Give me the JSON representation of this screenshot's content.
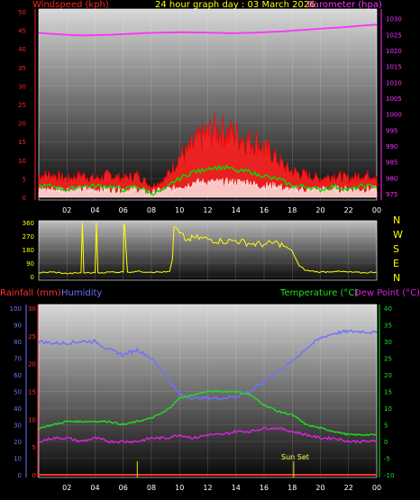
{
  "header": {
    "windspeed_title": "Windspeed (kph)",
    "graph_title": "24 hour graph day : 03 March 2026",
    "barometer_title": "Barometer (hpa)",
    "rainfall_title": "Rainfall (mm)",
    "humidity_title": "Humidity",
    "temperature_title": "Temperature (°C)",
    "dewpoint_title": "Dew Point (°C)",
    "sunset_label": "Sun Set"
  },
  "colors": {
    "windspeed": "#ff2020",
    "gust_outline": "#ff0000",
    "wind_avg": "#00e000",
    "wind_low": "#ffffff",
    "barometer": "#ff30ff",
    "direction": "#ffff00",
    "rainfall": "#ff3030",
    "humidity": "#7070ff",
    "temperature": "#20e020",
    "dewpoint": "#e020e0",
    "sun": "#d0c000"
  },
  "compass": [
    "N",
    "W",
    "S",
    "E",
    "N"
  ],
  "chart_data": [
    {
      "type": "line",
      "name": "wind-barometer",
      "x_ticks": [
        "02",
        "04",
        "06",
        "08",
        "10",
        "12",
        "14",
        "16",
        "18",
        "20",
        "22",
        "00"
      ],
      "left_axis": {
        "title": "Windspeed (kph)",
        "ylim": [
          0,
          50
        ],
        "ticks": [
          0,
          5,
          10,
          15,
          20,
          25,
          30,
          35,
          40,
          45,
          50
        ]
      },
      "right_axis": {
        "title": "Barometer (hpa)",
        "ylim": [
          973,
          1033
        ],
        "ticks": [
          975,
          980,
          985,
          990,
          995,
          1000,
          1005,
          1010,
          1015,
          1020,
          1025,
          1030
        ]
      },
      "hours": [
        0,
        1,
        2,
        3,
        4,
        5,
        6,
        7,
        8,
        9,
        9.5,
        10,
        10.5,
        11,
        11.5,
        12,
        12.5,
        13,
        13.5,
        14,
        14.5,
        15,
        15.5,
        16,
        16.5,
        17,
        17.5,
        18,
        19,
        20,
        21,
        22,
        23,
        24
      ],
      "gust": [
        6,
        6,
        5,
        6,
        5,
        6,
        5,
        6,
        3,
        5,
        8,
        11,
        12,
        14,
        16,
        17,
        18,
        18,
        17,
        17,
        16,
        15,
        15,
        13,
        12,
        10,
        8,
        7,
        6,
        5,
        6,
        5,
        6,
        6
      ],
      "avg": [
        3,
        3,
        2,
        3,
        3,
        3,
        2,
        3,
        1,
        2,
        4,
        5,
        6,
        7,
        7,
        8,
        8,
        8,
        8,
        7,
        7,
        7,
        6,
        6,
        5,
        5,
        4,
        3,
        3,
        2,
        3,
        2,
        3,
        3
      ],
      "low": [
        1,
        1,
        1,
        1,
        1,
        1,
        1,
        1,
        0,
        1,
        1,
        2,
        2,
        3,
        3,
        3,
        3,
        3,
        3,
        3,
        3,
        3,
        2,
        2,
        2,
        2,
        1,
        1,
        1,
        1,
        1,
        1,
        1,
        1
      ],
      "barometer": [
        1025.5,
        1025.2,
        1024.9,
        1024.7,
        1024.8,
        1024.9,
        1025.1,
        1025.3,
        1025.5,
        1025.6,
        1025.6,
        1025.7,
        1025.7,
        1025.6,
        1025.6,
        1025.6,
        1025.5,
        1025.5,
        1025.4,
        1025.4,
        1025.5,
        1025.5,
        1025.6,
        1025.7,
        1025.8,
        1025.9,
        1026,
        1026.2,
        1026.5,
        1026.8,
        1027.1,
        1027.4,
        1027.8,
        1028.1
      ]
    },
    {
      "type": "line",
      "name": "wind-direction",
      "left_axis": {
        "ylim": [
          0,
          360
        ],
        "ticks": [
          0,
          90,
          180,
          270,
          360
        ]
      },
      "hours": [
        0,
        1,
        2,
        3,
        3.1,
        3.2,
        4,
        4.1,
        4.2,
        5,
        6,
        6.05,
        6.1,
        6.3,
        7,
        8,
        9,
        9.3,
        9.5,
        9.6,
        10,
        10.5,
        11,
        12,
        13,
        14,
        15,
        16,
        17,
        17.5,
        18,
        18.5,
        19,
        20,
        21,
        22,
        23,
        24
      ],
      "direction": [
        25,
        30,
        20,
        25,
        360,
        25,
        25,
        360,
        25,
        30,
        30,
        350,
        340,
        30,
        35,
        30,
        30,
        35,
        120,
        330,
        290,
        240,
        260,
        250,
        235,
        240,
        220,
        215,
        225,
        200,
        170,
        70,
        40,
        30,
        35,
        30,
        25,
        30
      ]
    },
    {
      "type": "line",
      "name": "rain-humidity-temperature",
      "x_ticks": [
        "02",
        "04",
        "06",
        "08",
        "10",
        "12",
        "14",
        "16",
        "18",
        "20",
        "22",
        "00"
      ],
      "humidity_axis": {
        "title": "Humidity",
        "ylim": [
          0,
          100
        ],
        "ticks": [
          0,
          10,
          20,
          30,
          40,
          50,
          60,
          70,
          80,
          90,
          100
        ]
      },
      "rainfall_axis": {
        "title": "Rainfall (mm)",
        "ylim": [
          0,
          30
        ],
        "ticks": [
          0,
          5,
          10,
          15,
          20,
          25,
          30
        ]
      },
      "temperature_axis": {
        "title": "Temperature (°C)",
        "ylim": [
          -10,
          40
        ],
        "ticks": [
          -10,
          -5,
          0,
          5,
          10,
          15,
          20,
          25,
          30,
          35,
          40
        ]
      },
      "hours": [
        0,
        1,
        2,
        3,
        4,
        5,
        6,
        7,
        8,
        9,
        10,
        11,
        12,
        13,
        14,
        15,
        16,
        17,
        18,
        19,
        20,
        21,
        22,
        23,
        24
      ],
      "humidity": [
        80,
        79,
        79,
        80,
        80,
        75,
        72,
        75,
        70,
        60,
        48,
        46,
        46,
        46,
        47,
        50,
        56,
        62,
        68,
        76,
        82,
        85,
        86,
        86,
        85
      ],
      "rainfall": [
        0,
        0,
        0,
        0,
        0,
        0,
        0,
        0,
        0,
        0,
        0,
        0,
        0,
        0,
        0,
        0,
        0,
        0,
        0,
        0,
        0,
        0,
        0,
        0,
        0
      ],
      "temperature": [
        4,
        5,
        6,
        6,
        6,
        6,
        5,
        6,
        7,
        9,
        13,
        14,
        15,
        15,
        15,
        14,
        11,
        9,
        8,
        5,
        4,
        3,
        2,
        2,
        2
      ],
      "dewpoint": [
        0,
        1,
        1,
        0,
        1,
        0,
        0,
        0,
        1,
        1,
        2,
        1,
        2,
        2,
        3,
        3,
        4,
        4,
        3,
        2,
        1,
        1,
        0,
        0,
        0
      ],
      "sunrise_hour": 7,
      "sunset_hour": 18.1
    }
  ]
}
